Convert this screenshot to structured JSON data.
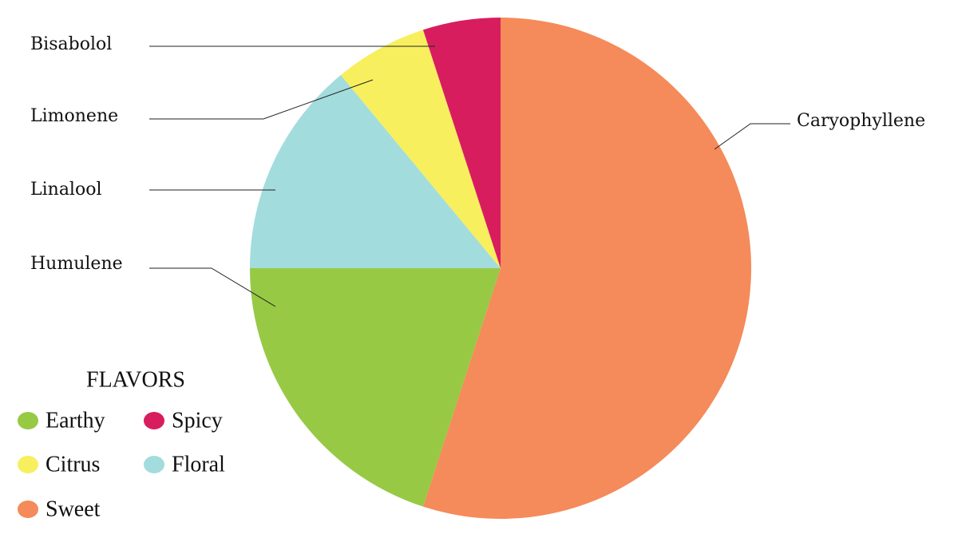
{
  "chart_data": {
    "type": "pie",
    "categories": [
      "Caryophyllene",
      "Humulene",
      "Linalool",
      "Limonene",
      "Bisabolol"
    ],
    "values": [
      55,
      20,
      14,
      6,
      5
    ],
    "colors": [
      "#f58a5a",
      "#97c945",
      "#a3dcdc",
      "#f7ef5e",
      "#d81d5e"
    ],
    "legend": {
      "title": "FLAVORS",
      "items": [
        {
          "label": "Earthy",
          "color": "#97c945"
        },
        {
          "label": "Spicy",
          "color": "#d81d5e"
        },
        {
          "label": "Citrus",
          "color": "#f7ef5e"
        },
        {
          "label": "Floral",
          "color": "#a3dcdc"
        },
        {
          "label": "Sweet",
          "color": "#f58a5a"
        }
      ]
    }
  }
}
